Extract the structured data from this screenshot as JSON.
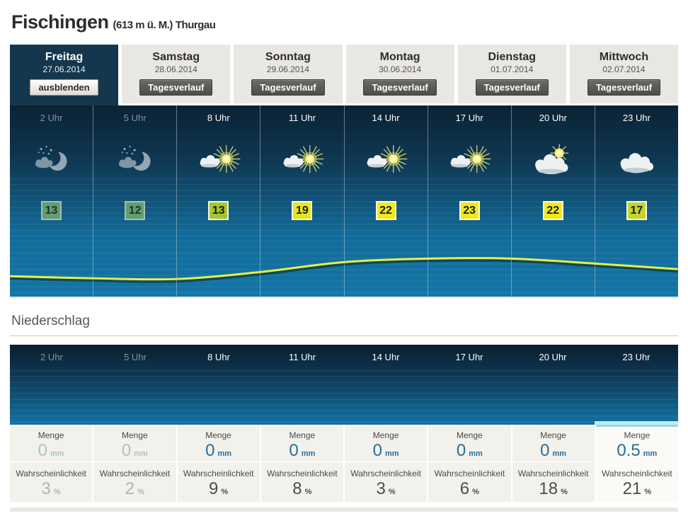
{
  "header": {
    "title": "Fischingen",
    "elevation": "(613 m ü. M.)",
    "region": "Thurgau"
  },
  "tabs": [
    {
      "day": "Freitag",
      "date": "27.06.2014",
      "button": "ausblenden",
      "active": true
    },
    {
      "day": "Samstag",
      "date": "28.06.2014",
      "button": "Tagesverlauf",
      "active": false
    },
    {
      "day": "Sonntag",
      "date": "29.06.2014",
      "button": "Tagesverlauf",
      "active": false
    },
    {
      "day": "Montag",
      "date": "30.06.2014",
      "button": "Tagesverlauf",
      "active": false
    },
    {
      "day": "Dienstag",
      "date": "01.07.2014",
      "button": "Tagesverlauf",
      "active": false
    },
    {
      "day": "Mittwoch",
      "date": "02.07.2014",
      "button": "Tagesverlauf",
      "active": false
    }
  ],
  "forecast": {
    "hours": [
      {
        "time": "2 Uhr",
        "icon": "moon-snow",
        "temp": "13",
        "temp_color": "#6fa470",
        "past": true
      },
      {
        "time": "5 Uhr",
        "icon": "moon-snow",
        "temp": "12",
        "temp_color": "#6fa470",
        "past": true
      },
      {
        "time": "8 Uhr",
        "icon": "sun-cloud",
        "temp": "13",
        "temp_color": "#a9c431",
        "past": false
      },
      {
        "time": "11 Uhr",
        "icon": "sun-cloud",
        "temp": "19",
        "temp_color": "#e9e420",
        "past": false
      },
      {
        "time": "14 Uhr",
        "icon": "sun-cloud",
        "temp": "22",
        "temp_color": "#f4e81c",
        "past": false
      },
      {
        "time": "17 Uhr",
        "icon": "sun-cloud",
        "temp": "23",
        "temp_color": "#f4e81c",
        "past": false
      },
      {
        "time": "20 Uhr",
        "icon": "cloud-sun",
        "temp": "22",
        "temp_color": "#f4e81c",
        "past": false
      },
      {
        "time": "23 Uhr",
        "icon": "cloud",
        "temp": "17",
        "temp_color": "#c6d32d",
        "past": false
      }
    ],
    "temp_curve": {
      "color": "#e4f04c",
      "points": [
        [
          0,
          243
        ],
        [
          118,
          246
        ],
        [
          236,
          247
        ],
        [
          354,
          237
        ],
        [
          472,
          223
        ],
        [
          590,
          218
        ],
        [
          708,
          218
        ],
        [
          826,
          225
        ],
        [
          944,
          233
        ]
      ]
    }
  },
  "precipitation": {
    "section_title": "Niederschlag",
    "amount_label": "Menge",
    "amount_unit": "mm",
    "probability_label": "Wahrscheinlichkeit",
    "probability_unit": "%",
    "columns": [
      {
        "time": "2 Uhr",
        "amount": "0",
        "probability": "3",
        "past": true,
        "highlight": false
      },
      {
        "time": "5 Uhr",
        "amount": "0",
        "probability": "2",
        "past": true,
        "highlight": false
      },
      {
        "time": "8 Uhr",
        "amount": "0",
        "probability": "9",
        "past": false,
        "highlight": false
      },
      {
        "time": "11 Uhr",
        "amount": "0",
        "probability": "8",
        "past": false,
        "highlight": false
      },
      {
        "time": "14 Uhr",
        "amount": "0",
        "probability": "3",
        "past": false,
        "highlight": false
      },
      {
        "time": "17 Uhr",
        "amount": "0",
        "probability": "6",
        "past": false,
        "highlight": false
      },
      {
        "time": "20 Uhr",
        "amount": "0",
        "probability": "18",
        "past": false,
        "highlight": false
      },
      {
        "time": "23 Uhr",
        "amount": "0.5",
        "probability": "21",
        "past": false,
        "highlight": true,
        "bar_color": "#c2ecef"
      }
    ]
  }
}
